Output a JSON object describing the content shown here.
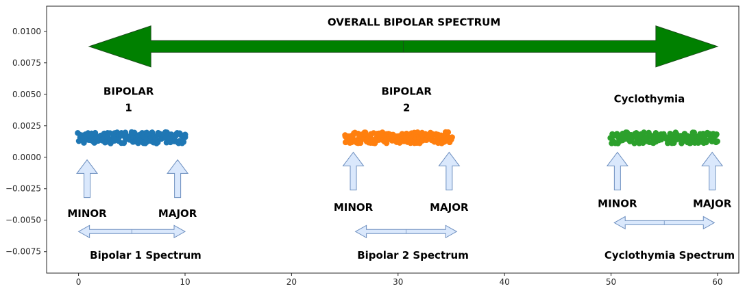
{
  "chart_data": {
    "type": "scatter",
    "xlim": [
      -3,
      62
    ],
    "ylim": [
      -0.0092,
      0.012
    ],
    "x_ticks": [
      0,
      10,
      20,
      30,
      40,
      50,
      60
    ],
    "x_tick_labels": [
      "0",
      "10",
      "20",
      "30",
      "40",
      "50",
      "60"
    ],
    "y_ticks": [
      0.01,
      0.0075,
      0.005,
      0.0025,
      0.0,
      -0.0025,
      -0.005,
      -0.0075
    ],
    "y_tick_labels": [
      "0.0100",
      "0.0075",
      "0.0050",
      "0.0025",
      "0.0000",
      "−0.0025",
      "−0.0050",
      "−0.0075"
    ],
    "grid": false,
    "title": "",
    "xlabel": "",
    "ylabel": "",
    "series": [
      {
        "x_range": [
          0,
          10
        ],
        "y_range": [
          0.0011,
          0.002
        ],
        "color": "#1f77b4"
      },
      {
        "x_range": [
          25,
          35
        ],
        "y_range": [
          0.0011,
          0.002
        ],
        "color": "#ff7f0e"
      },
      {
        "x_range": [
          50,
          60
        ],
        "y_range": [
          0.0011,
          0.002
        ],
        "color": "#2ca02c"
      }
    ],
    "annotations": {
      "overall": {
        "text": "OVERALL BIPOLAR SPECTRUM",
        "x": 31.5,
        "y": 0.0107
      },
      "overall_arrow": {
        "x_start": 1,
        "x_end": 60,
        "y": 0.0088,
        "color": "#008000"
      },
      "groups": [
        {
          "title_lines": [
            "BIPOLAR",
            "1"
          ],
          "title_x": 4.7,
          "title_y": [
            0.0052,
            0.0039
          ],
          "minor": {
            "text": "MINOR",
            "x": 0.8,
            "y": -0.0045
          },
          "major": {
            "text": "MAJOR",
            "x": 9.3,
            "y": -0.0045
          },
          "up_arrows_x": [
            0.8,
            9.3
          ],
          "up_arrows_y": [
            -0.0032,
            -0.0002
          ],
          "spectrum": {
            "text": "Bipolar 1 Spectrum",
            "x": 6.3,
            "y": -0.0078
          },
          "spectrum_arrow": {
            "x_start": 0,
            "x_end": 10,
            "y": -0.0059
          }
        },
        {
          "title_lines": [
            "BIPOLAR",
            "2"
          ],
          "title_x": 30.8,
          "title_y": [
            0.0052,
            0.0039
          ],
          "minor": {
            "text": "MINOR",
            "x": 25.8,
            "y": -0.004
          },
          "major": {
            "text": "MAJOR",
            "x": 34.8,
            "y": -0.004
          },
          "up_arrows_x": [
            25.8,
            34.8
          ],
          "up_arrows_y": [
            -0.0026,
            0.0004
          ],
          "spectrum": {
            "text": "Bipolar 2 Spectrum",
            "x": 31.4,
            "y": -0.0078
          },
          "spectrum_arrow": {
            "x_start": 26,
            "x_end": 35.5,
            "y": -0.0059
          }
        },
        {
          "title_lines": [
            "Cyclothymia"
          ],
          "title_x": 53.6,
          "title_y": [
            0.0046
          ],
          "minor": {
            "text": "MINOR",
            "x": 50.6,
            "y": -0.0037
          },
          "major": {
            "text": "MAJOR",
            "x": 59.5,
            "y": -0.0037
          },
          "up_arrows_x": [
            50.6,
            59.5
          ],
          "up_arrows_y": [
            -0.0026,
            0.0004
          ],
          "spectrum": {
            "text": "Cyclothymia Spectrum",
            "x": 55.5,
            "y": -0.0078
          },
          "spectrum_arrow": {
            "x_start": 50.3,
            "x_end": 59.7,
            "y": -0.0052
          }
        }
      ]
    }
  }
}
